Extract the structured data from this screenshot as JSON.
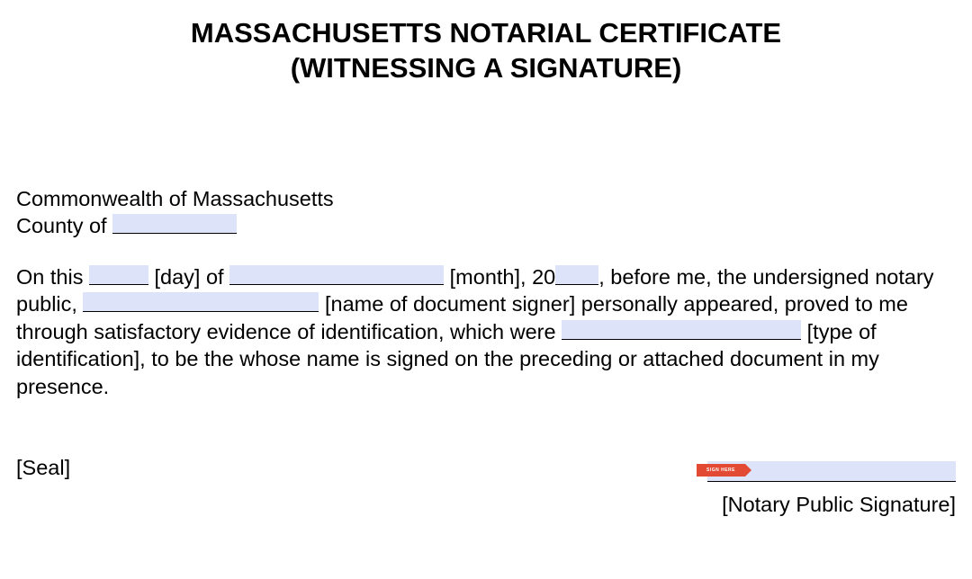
{
  "title_line1": "MASSACHUSETTS NOTARIAL CERTIFICATE",
  "title_line2": "(WITNESSING A SIGNATURE)",
  "commonwealth": "Commonwealth of Massachusetts",
  "county_label": "County of ",
  "para2_part1": "On this ",
  "para2_day": " [day] of ",
  "para2_month": " [month], 20",
  "para2_part2": ", before me, the undersigned notary public, ",
  "para2_part3": " [name of document signer] personally appeared, proved to me through satisfactory evidence of identification, which were ",
  "para2_part4": " [type of identification], to be the whose name is signed on the preceding or attached document in my presence.",
  "seal": "[Seal]",
  "sign_tab": "SIGN HERE",
  "sig_label": "[Notary Public Signature]",
  "field_widths": {
    "county": 138,
    "day": 66,
    "month": 238,
    "year": 48,
    "signer": 262,
    "id_type": 266
  },
  "colors": {
    "field_bg": "#dde3f8",
    "text": "#000000",
    "tab": "#e24a33"
  }
}
